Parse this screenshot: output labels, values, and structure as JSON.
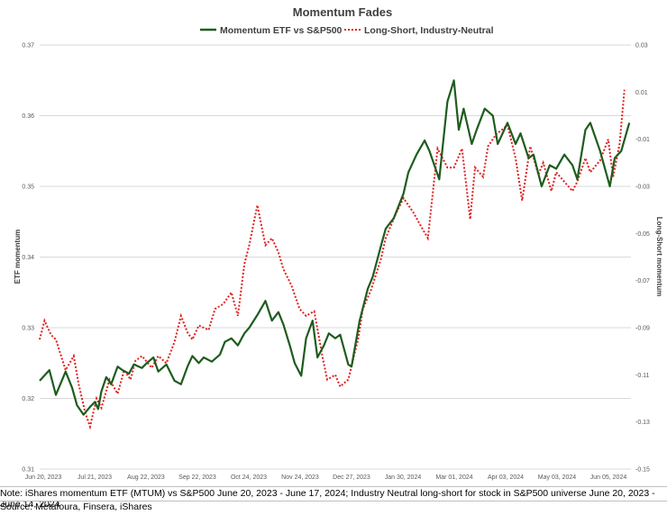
{
  "chart_data": {
    "type": "line",
    "title": "Momentum Fades",
    "ylabel_left": "ETF momentum",
    "ylabel_right": "Long-Short momentum",
    "ylim_left": [
      0.31,
      0.37
    ],
    "ylim_right": [
      -0.15,
      0.03
    ],
    "yticks_left": [
      "0.31",
      "0.32",
      "0.33",
      "0.34",
      "0.35",
      "0.36",
      "0.37"
    ],
    "yticks_right": [
      "-0.15",
      "-0.13",
      "-0.11",
      "-0.09",
      "-0.07",
      "-0.05",
      "-0.03",
      "-0.01",
      "0.01",
      "0.03"
    ],
    "grid": true,
    "legend_position": "top",
    "x_tick_labels": [
      "Jun 20, 2023",
      "Jul 21, 2023",
      "Aug 22, 2023",
      "Sep 22, 2023",
      "Oct 24, 2023",
      "Nov 24, 2023",
      "Dec 27, 2023",
      "Jan 30, 2024",
      "Mar 01, 2024",
      "Apr 03, 2024",
      "May 03, 2024",
      "Jun 05, 2024"
    ],
    "series": [
      {
        "name": "Momentum ETF vs S&P500",
        "axis": "left",
        "color": "#1e5c1e",
        "style": "solid",
        "x": [
          "2023-06-20",
          "2023-06-26",
          "2023-06-30",
          "2023-07-06",
          "2023-07-10",
          "2023-07-13",
          "2023-07-17",
          "2023-07-21",
          "2023-07-24",
          "2023-07-26",
          "2023-07-28",
          "2023-07-31",
          "2023-08-03",
          "2023-08-07",
          "2023-08-10",
          "2023-08-14",
          "2023-08-17",
          "2023-08-22",
          "2023-08-25",
          "2023-08-29",
          "2023-09-01",
          "2023-09-06",
          "2023-09-11",
          "2023-09-15",
          "2023-09-19",
          "2023-09-22",
          "2023-09-26",
          "2023-09-29",
          "2023-10-04",
          "2023-10-09",
          "2023-10-12",
          "2023-10-16",
          "2023-10-20",
          "2023-10-24",
          "2023-10-27",
          "2023-11-01",
          "2023-11-06",
          "2023-11-10",
          "2023-11-14",
          "2023-11-17",
          "2023-11-21",
          "2023-11-24",
          "2023-11-28",
          "2023-12-01",
          "2023-12-05",
          "2023-12-08",
          "2023-12-12",
          "2023-12-15",
          "2023-12-19",
          "2023-12-22",
          "2023-12-27",
          "2023-12-29",
          "2024-01-03",
          "2024-01-08",
          "2024-01-11",
          "2024-01-16",
          "2024-01-19",
          "2024-01-24",
          "2024-01-30",
          "2024-02-02",
          "2024-02-07",
          "2024-02-12",
          "2024-02-15",
          "2024-02-21",
          "2024-02-26",
          "2024-03-01",
          "2024-03-04",
          "2024-03-07",
          "2024-03-12",
          "2024-03-15",
          "2024-03-20",
          "2024-03-25",
          "2024-03-28",
          "2024-04-03",
          "2024-04-08",
          "2024-04-11",
          "2024-04-16",
          "2024-04-19",
          "2024-04-24",
          "2024-04-29",
          "2024-05-03",
          "2024-05-08",
          "2024-05-13",
          "2024-05-16",
          "2024-05-21",
          "2024-05-24",
          "2024-05-30",
          "2024-06-05",
          "2024-06-08",
          "2024-06-12",
          "2024-06-17"
        ],
        "y": [
          0.3225,
          0.324,
          0.3205,
          0.3238,
          0.3215,
          0.319,
          0.3177,
          0.3188,
          0.3195,
          0.3185,
          0.321,
          0.323,
          0.322,
          0.3245,
          0.324,
          0.3235,
          0.3248,
          0.3243,
          0.325,
          0.3258,
          0.3238,
          0.3248,
          0.3225,
          0.322,
          0.3245,
          0.326,
          0.325,
          0.3258,
          0.3252,
          0.3262,
          0.328,
          0.3285,
          0.3275,
          0.3292,
          0.33,
          0.3318,
          0.3338,
          0.331,
          0.3322,
          0.3305,
          0.3275,
          0.325,
          0.3232,
          0.3285,
          0.331,
          0.3258,
          0.3275,
          0.3292,
          0.3285,
          0.329,
          0.3248,
          0.3245,
          0.331,
          0.3355,
          0.3372,
          0.3415,
          0.344,
          0.3455,
          0.349,
          0.352,
          0.3545,
          0.3565,
          0.355,
          0.351,
          0.362,
          0.365,
          0.358,
          0.361,
          0.356,
          0.358,
          0.361,
          0.36,
          0.356,
          0.359,
          0.356,
          0.3575,
          0.354,
          0.3545,
          0.35,
          0.353,
          0.3525,
          0.3545,
          0.353,
          0.351,
          0.358,
          0.359,
          0.355,
          0.35,
          0.354,
          0.355,
          0.359
        ]
      },
      {
        "name": "Long-Short, Industry-Neutral",
        "axis": "right",
        "color": "#e02020",
        "style": "dotted",
        "x": [
          "2023-06-20",
          "2023-06-23",
          "2023-06-27",
          "2023-06-30",
          "2023-07-06",
          "2023-07-11",
          "2023-07-14",
          "2023-07-18",
          "2023-07-21",
          "2023-07-25",
          "2023-07-28",
          "2023-08-02",
          "2023-08-07",
          "2023-08-11",
          "2023-08-15",
          "2023-08-18",
          "2023-08-22",
          "2023-08-28",
          "2023-09-01",
          "2023-09-06",
          "2023-09-11",
          "2023-09-15",
          "2023-09-19",
          "2023-09-22",
          "2023-09-26",
          "2023-10-02",
          "2023-10-06",
          "2023-10-11",
          "2023-10-16",
          "2023-10-20",
          "2023-10-24",
          "2023-10-27",
          "2023-11-01",
          "2023-11-06",
          "2023-11-10",
          "2023-11-14",
          "2023-11-17",
          "2023-11-22",
          "2023-11-27",
          "2023-12-01",
          "2023-12-06",
          "2023-12-11",
          "2023-12-14",
          "2023-12-19",
          "2023-12-22",
          "2023-12-27",
          "2024-01-02",
          "2024-01-05",
          "2024-01-10",
          "2024-01-16",
          "2024-01-19",
          "2024-01-25",
          "2024-01-30",
          "2024-02-05",
          "2024-02-09",
          "2024-02-14",
          "2024-02-20",
          "2024-02-26",
          "2024-03-01",
          "2024-03-06",
          "2024-03-11",
          "2024-03-14",
          "2024-03-19",
          "2024-03-22",
          "2024-03-27",
          "2024-04-03",
          "2024-04-08",
          "2024-04-12",
          "2024-04-17",
          "2024-04-22",
          "2024-04-25",
          "2024-04-30",
          "2024-05-03",
          "2024-05-08",
          "2024-05-13",
          "2024-05-16",
          "2024-05-21",
          "2024-05-24",
          "2024-05-30",
          "2024-06-04",
          "2024-06-07",
          "2024-06-11",
          "2024-06-14"
        ],
        "y": [
          -0.095,
          -0.087,
          -0.093,
          -0.095,
          -0.108,
          -0.102,
          -0.114,
          -0.126,
          -0.132,
          -0.12,
          -0.124,
          -0.112,
          -0.118,
          -0.108,
          -0.112,
          -0.104,
          -0.102,
          -0.107,
          -0.102,
          -0.105,
          -0.096,
          -0.085,
          -0.092,
          -0.095,
          -0.089,
          -0.091,
          -0.082,
          -0.08,
          -0.075,
          -0.085,
          -0.063,
          -0.055,
          -0.038,
          -0.055,
          -0.052,
          -0.058,
          -0.065,
          -0.072,
          -0.082,
          -0.085,
          -0.083,
          -0.102,
          -0.112,
          -0.11,
          -0.115,
          -0.112,
          -0.095,
          -0.082,
          -0.074,
          -0.061,
          -0.052,
          -0.042,
          -0.035,
          -0.041,
          -0.046,
          -0.052,
          -0.014,
          -0.022,
          -0.022,
          -0.014,
          -0.044,
          -0.022,
          -0.026,
          -0.013,
          -0.008,
          -0.004,
          -0.018,
          -0.036,
          -0.013,
          -0.025,
          -0.02,
          -0.032,
          -0.024,
          -0.028,
          -0.032,
          -0.028,
          -0.018,
          -0.024,
          -0.019,
          -0.01,
          -0.026,
          -0.012,
          0.011
        ]
      }
    ]
  },
  "footer": {
    "note": "Note: iShares momentum ETF (MTUM) vs S&P500  June 20, 2023  - June 17, 2024; Industry Neutral long-short for stock in S&P500 universe June 20, 2023  - June 14, 2024",
    "source": "Source: Metafoura, Finsera, iShares"
  }
}
